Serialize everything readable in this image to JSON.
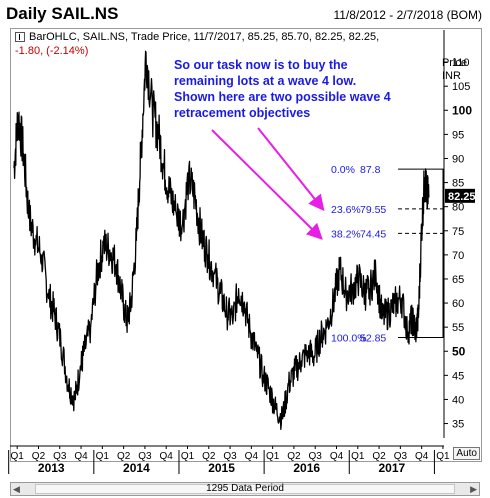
{
  "header": {
    "title": "Daily SAIL.NS",
    "date_range": "11/8/2012 - 2/7/2018 (BOM)"
  },
  "info": {
    "line1": "BarOHLC, SAIL.NS, Trade Price, 11/7/2017, 85.25, 85.70, 82.25, 82.25,",
    "line2": "-1.80, (-2.14%)"
  },
  "price_header": {
    "line1": "Price",
    "line2": "INR"
  },
  "auto_label": "Auto",
  "footer": {
    "data_period": "1295 Data Period"
  },
  "annotation": {
    "lines": [
      "So our task now is to buy the",
      "remaining lots at a wave 4 low.",
      "Shown here are two possible wave 4",
      "retracement objectives"
    ],
    "color": "#1a1ae6"
  },
  "fib_levels": [
    {
      "label": "0.0%",
      "value": "87.8"
    },
    {
      "label": "23.6%",
      "value": "79.55"
    },
    {
      "label": "38.2%",
      "value": "74.45"
    },
    {
      "label": "100.0%",
      "value": "52.85"
    }
  ],
  "last_price_tag": "82.25",
  "colors": {
    "arrow": "#e61ee6",
    "text_blue": "#1a1ae6",
    "last_tag_bg": "#000000"
  },
  "chart_data": {
    "type": "line",
    "title": "Daily SAIL.NS",
    "ylabel": "Price INR",
    "ylim": [
      32,
      115
    ],
    "y_ticks": [
      35,
      40,
      45,
      50,
      55,
      60,
      65,
      70,
      75,
      80,
      85,
      90,
      95,
      100,
      105,
      110
    ],
    "bold_ticks": [
      50,
      100
    ],
    "quarters": [
      "Q1",
      "Q2",
      "Q3",
      "Q4",
      "Q1",
      "Q2",
      "Q3",
      "Q4",
      "Q1",
      "Q2",
      "Q3",
      "Q4",
      "Q1",
      "Q2",
      "Q3",
      "Q4",
      "Q1",
      "Q2",
      "Q3",
      "Q4",
      "Q1"
    ],
    "years": [
      "2013",
      "2014",
      "2015",
      "2016",
      "2017"
    ],
    "x": [
      0,
      0.2,
      0.45,
      0.7,
      1.0,
      1.3,
      1.6,
      1.9,
      2.2,
      2.55,
      2.85,
      3.1,
      3.3,
      3.6,
      3.9,
      4.2,
      4.5,
      4.8,
      5.05,
      5.3,
      5.5,
      5.75,
      5.95,
      6.2,
      6.5,
      6.8,
      7.05,
      7.3,
      7.6,
      7.9,
      8.2,
      8.5,
      8.8,
      9.1,
      9.4,
      9.7,
      10.0,
      10.3,
      10.55,
      10.8,
      11.1,
      11.4,
      11.7,
      12.0,
      12.3,
      12.6,
      12.9,
      13.2,
      13.5,
      13.8,
      14.1,
      14.4,
      14.7,
      15.0,
      15.3,
      15.6,
      15.9,
      16.2,
      16.5,
      16.7,
      17.0,
      17.3,
      17.6,
      17.9,
      18.2,
      18.5,
      18.7,
      18.85,
      19.0,
      19.15,
      19.3,
      19.4,
      19.5
    ],
    "series": [
      {
        "values": [
          88,
          99,
          91,
          78,
          73,
          70,
          62,
          58,
          52,
          43,
          40,
          46,
          50,
          55,
          66,
          72,
          71,
          68,
          62,
          56,
          60,
          73,
          90,
          112,
          100,
          95,
          88,
          83,
          79,
          76,
          86,
          82,
          74,
          70,
          66,
          62,
          58,
          57,
          63,
          60,
          54,
          50,
          45,
          42,
          38,
          36,
          43,
          46,
          48,
          50,
          49,
          53,
          55,
          60,
          67,
          62,
          63,
          65,
          62,
          63,
          66,
          57,
          58,
          60,
          61,
          54,
          57,
          54,
          57,
          76,
          86,
          82,
          82.25
        ]
      }
    ]
  }
}
